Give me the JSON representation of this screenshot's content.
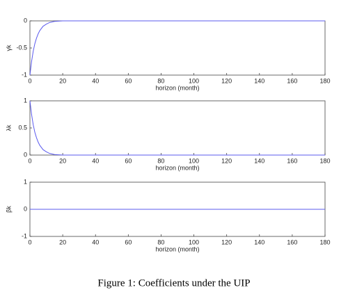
{
  "chart_data": [
    {
      "type": "line",
      "ylabel": "γk",
      "xlabel": "horizon (month)",
      "x": [
        0,
        1,
        2,
        3,
        4,
        5,
        6,
        8,
        10,
        12,
        15,
        20,
        40,
        60,
        80,
        100,
        120,
        140,
        160,
        180
      ],
      "series": [
        {
          "color": "#5a5aee",
          "values": [
            -1,
            -0.75,
            -0.56,
            -0.42,
            -0.32,
            -0.24,
            -0.18,
            -0.1,
            -0.06,
            -0.03,
            -0.01,
            0,
            0,
            0,
            0,
            0,
            0,
            0,
            0,
            0
          ]
        }
      ],
      "xlim": [
        0,
        180
      ],
      "xticks": [
        0,
        20,
        40,
        60,
        80,
        100,
        120,
        140,
        160,
        180
      ],
      "ylim": [
        -1,
        0
      ],
      "yticks": [
        -1,
        -0.5,
        0
      ]
    },
    {
      "type": "line",
      "ylabel": "λk",
      "xlabel": "horizon (month)",
      "x": [
        0,
        1,
        2,
        3,
        4,
        5,
        6,
        8,
        10,
        12,
        15,
        20,
        40,
        60,
        80,
        100,
        120,
        140,
        160,
        180
      ],
      "series": [
        {
          "color": "#5a5aee",
          "values": [
            1,
            0.75,
            0.56,
            0.42,
            0.32,
            0.24,
            0.18,
            0.1,
            0.06,
            0.03,
            0.01,
            0,
            0,
            0,
            0,
            0,
            0,
            0,
            0,
            0
          ]
        }
      ],
      "xlim": [
        0,
        180
      ],
      "xticks": [
        0,
        20,
        40,
        60,
        80,
        100,
        120,
        140,
        160,
        180
      ],
      "ylim": [
        0,
        1
      ],
      "yticks": [
        0,
        0.5,
        1
      ]
    },
    {
      "type": "line",
      "ylabel": "βk",
      "xlabel": "horizon (month)",
      "x": [
        0,
        180
      ],
      "series": [
        {
          "color": "#5a5aee",
          "values": [
            0,
            0
          ]
        }
      ],
      "xlim": [
        0,
        180
      ],
      "xticks": [
        0,
        20,
        40,
        60,
        80,
        100,
        120,
        140,
        160,
        180
      ],
      "ylim": [
        -1,
        1
      ],
      "yticks": [
        -1,
        0,
        1
      ]
    }
  ],
  "caption": "Figure 1: Coefficients under the UIP"
}
